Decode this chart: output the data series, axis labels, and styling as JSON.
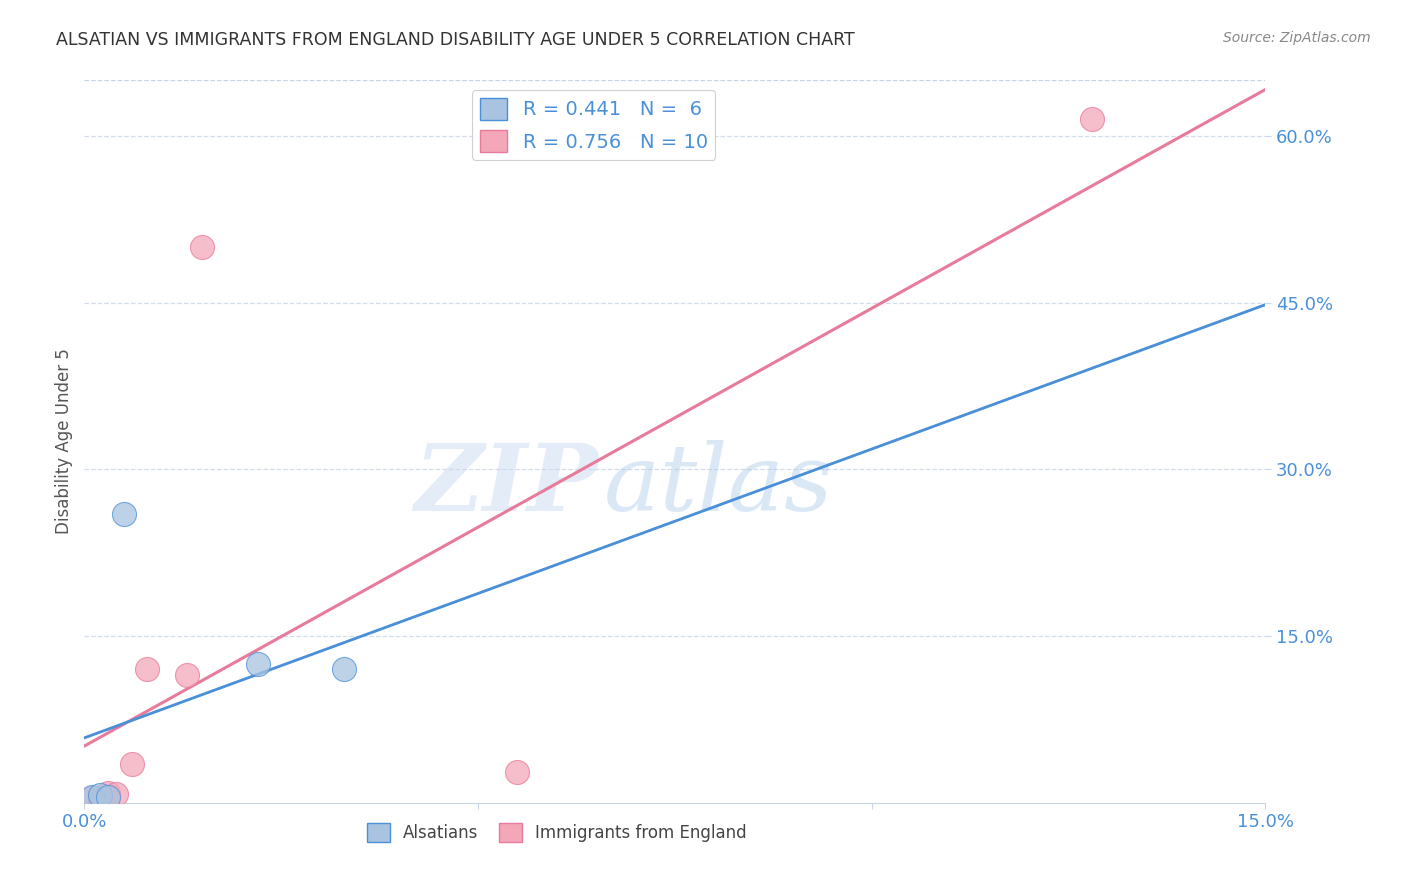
{
  "title": "ALSATIAN VS IMMIGRANTS FROM ENGLAND DISABILITY AGE UNDER 5 CORRELATION CHART",
  "source": "Source: ZipAtlas.com",
  "ylabel": "Disability Age Under 5",
  "xlim": [
    0.0,
    0.15
  ],
  "ylim": [
    0.0,
    0.65
  ],
  "ytick_labels": [
    "15.0%",
    "30.0%",
    "45.0%",
    "60.0%"
  ],
  "ytick_vals": [
    0.15,
    0.3,
    0.45,
    0.6
  ],
  "alsatian_x": [
    0.001,
    0.002,
    0.003,
    0.005,
    0.022,
    0.033
  ],
  "alsatian_y": [
    0.005,
    0.007,
    0.005,
    0.26,
    0.125,
    0.12
  ],
  "england_x": [
    0.001,
    0.002,
    0.003,
    0.004,
    0.006,
    0.008,
    0.013,
    0.015,
    0.055,
    0.128
  ],
  "england_y": [
    0.004,
    0.002,
    0.009,
    0.008,
    0.035,
    0.12,
    0.115,
    0.5,
    0.028,
    0.615
  ],
  "alsatian_color": "#a8c4e0",
  "england_color": "#f4a7b9",
  "alsatian_line_color": "#4a90d9",
  "england_line_color": "#e87a9a",
  "ref_line_color": "#b0bcd4",
  "R_alsatian": 0.441,
  "N_alsatian": 6,
  "R_england": 0.756,
  "N_england": 10,
  "legend_alsatian": "Alsatians",
  "legend_england": "Immigrants from England",
  "watermark_zip": "ZIP",
  "watermark_atlas": "atlas",
  "background_color": "#ffffff",
  "title_color": "#333333",
  "tick_label_color": "#4a90d9"
}
